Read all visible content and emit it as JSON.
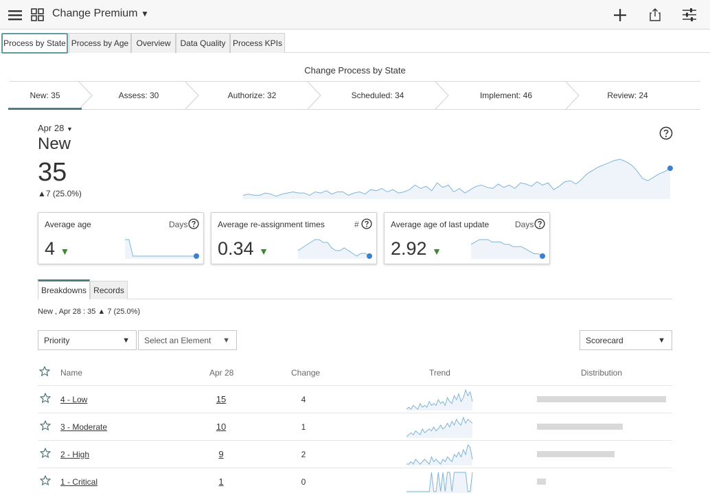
{
  "header": {
    "title": "Change Premium",
    "icons": [
      "menu-icon",
      "dashboard-grid-icon",
      "caret-down-icon",
      "plus-icon",
      "share-icon",
      "filter-sliders-icon"
    ]
  },
  "tabs": [
    "Process by State",
    "Process by Age",
    "Overview",
    "Data Quality",
    "Process KPIs"
  ],
  "process": {
    "title": "Change Process by State",
    "steps": [
      "New: 35",
      "Assess: 30",
      "Authorize: 32",
      "Scheduled: 34",
      "Implement: 46",
      "Review: 24"
    ]
  },
  "summary": {
    "date": "Apr 28",
    "state": "New",
    "value": "35",
    "change": "▲7 (25.0%)",
    "trend": [
      3,
      4,
      3,
      3,
      5,
      4,
      2,
      4,
      5,
      6,
      5,
      5,
      3,
      6,
      5,
      7,
      4,
      6,
      6,
      3,
      5,
      6,
      4,
      8,
      7,
      9,
      6,
      8,
      5,
      6,
      8,
      12,
      9,
      11,
      7,
      14,
      10,
      12,
      6,
      9,
      5,
      8,
      11,
      12,
      10,
      9,
      13,
      10,
      12,
      9,
      14,
      13,
      11,
      15,
      12,
      14,
      8,
      11,
      15,
      16,
      13,
      17,
      22,
      25,
      28,
      30,
      32,
      34,
      35,
      33,
      30,
      25,
      18,
      16,
      19,
      22,
      24,
      27
    ]
  },
  "cards": [
    {
      "title": "Average age",
      "unit": "Days",
      "value": "4",
      "trend": [
        10,
        10,
        2,
        2,
        2,
        2,
        2,
        2,
        2,
        2,
        2,
        2,
        2,
        2,
        2,
        2,
        2,
        2,
        2
      ]
    },
    {
      "title": "Average re-assignment times",
      "unit": "#",
      "value": "0.34",
      "trend": [
        5,
        6,
        7,
        8,
        9,
        9,
        8,
        8,
        6,
        5,
        5,
        6,
        5,
        4,
        3,
        4,
        4,
        3
      ]
    },
    {
      "title": "Average age of last update",
      "unit": "Days",
      "value": "2.92",
      "trend": [
        7,
        8,
        9,
        9,
        9,
        8,
        8,
        8,
        7,
        7,
        6,
        6,
        6,
        5,
        4,
        3,
        3,
        2
      ]
    }
  ],
  "breakdown": {
    "tabs": [
      "Breakdowns",
      "Records"
    ],
    "crumb": "New , Apr 28 : 35 ▲ 7 (25.0%)",
    "group_by": "Priority",
    "element_placeholder": "Select an Element",
    "view": "Scorecard",
    "columns": [
      "Name",
      "Apr 28",
      "Change",
      "Trend",
      "Distribution"
    ],
    "rows": [
      {
        "name": "4 - Low",
        "value": "15",
        "change": "4",
        "distribution": 15,
        "trend": [
          2,
          3,
          2,
          4,
          3,
          2,
          5,
          3,
          4,
          3,
          6,
          4,
          5,
          4,
          7,
          5,
          6,
          4,
          8,
          6,
          5,
          9,
          7,
          10,
          6,
          8,
          12,
          9,
          11,
          6
        ]
      },
      {
        "name": "3 - Moderate",
        "value": "10",
        "change": "1",
        "distribution": 10,
        "trend": [
          2,
          3,
          4,
          3,
          5,
          4,
          3,
          6,
          4,
          5,
          6,
          5,
          7,
          5,
          6,
          8,
          6,
          7,
          9,
          7,
          10,
          8,
          11,
          9,
          8,
          12,
          9,
          11,
          10,
          9
        ]
      },
      {
        "name": "2 - High",
        "value": "9",
        "change": "2",
        "distribution": 9,
        "trend": [
          2,
          2,
          3,
          2,
          4,
          3,
          2,
          3,
          4,
          3,
          2,
          5,
          3,
          4,
          3,
          2,
          4,
          3,
          5,
          4,
          3,
          6,
          5,
          7,
          5,
          8,
          6,
          10,
          9,
          4
        ]
      },
      {
        "name": "1 - Critical",
        "value": "1",
        "change": "0",
        "distribution": 1,
        "trend": [
          0,
          0,
          0,
          0,
          0,
          0,
          0,
          0,
          0,
          0,
          0,
          1,
          0,
          0,
          1,
          0,
          1,
          0,
          1,
          1,
          0,
          1,
          1,
          1,
          1,
          1,
          1,
          0,
          0,
          1
        ]
      }
    ]
  }
}
